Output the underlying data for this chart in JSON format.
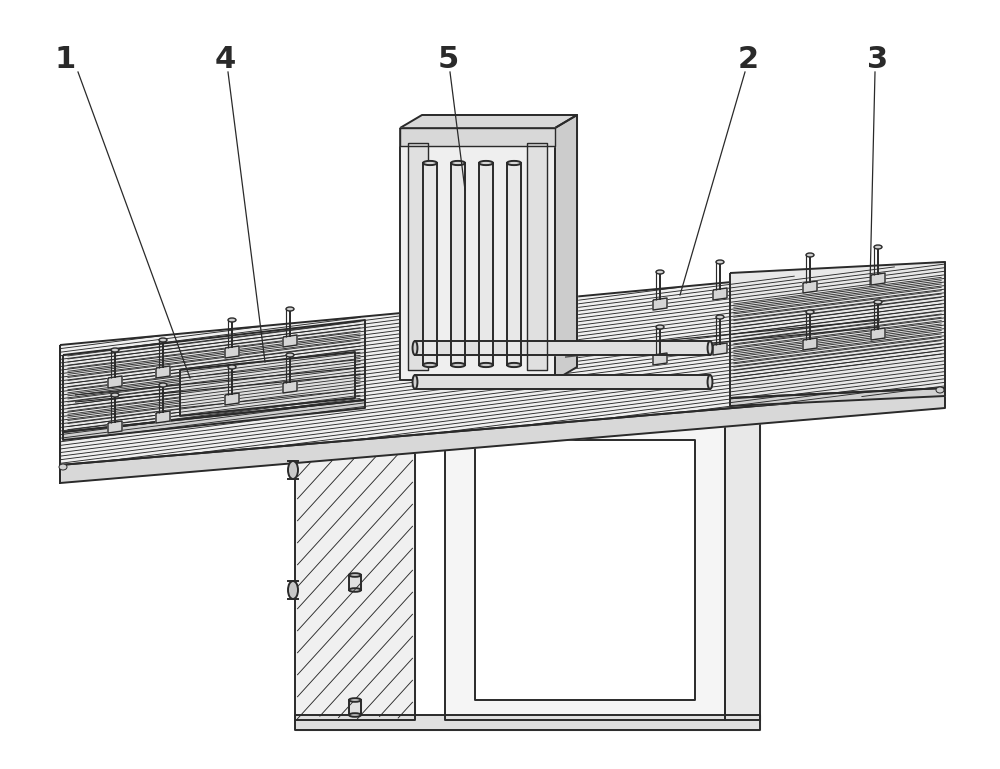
{
  "bg_color": "#ffffff",
  "lc": "#2a2a2a",
  "lw": 1.4,
  "tlw": 0.7,
  "label_fs": 22,
  "figsize": [
    10.0,
    7.69
  ]
}
